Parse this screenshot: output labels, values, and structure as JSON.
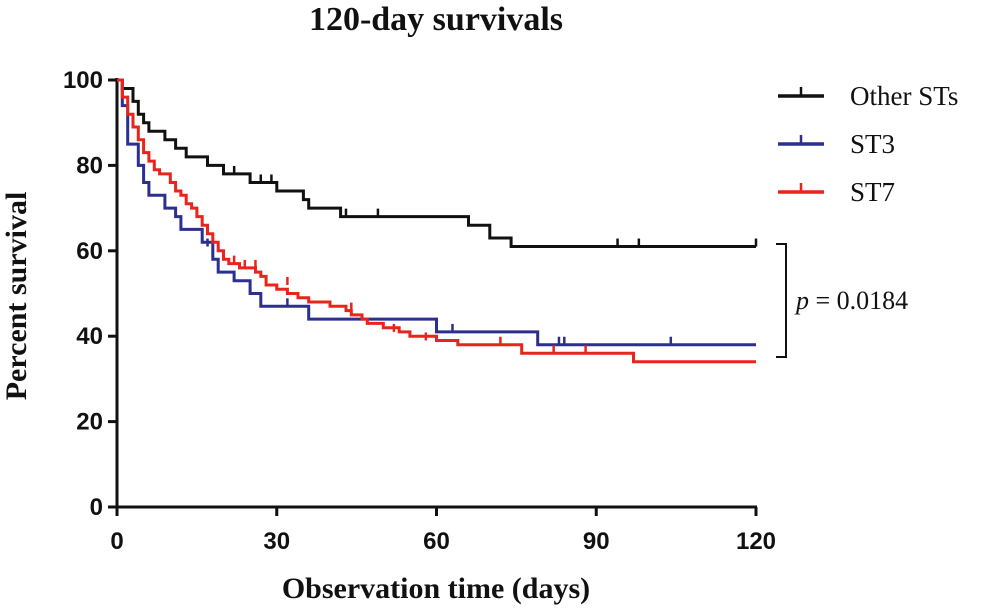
{
  "chart_data": {
    "type": "line",
    "subtype": "kaplan-meier step",
    "title": "120-day survivals",
    "xlabel": "Observation time (days)",
    "ylabel": "Percent survival",
    "xlim": [
      0,
      120
    ],
    "ylim": [
      0,
      100
    ],
    "xticks": [
      0,
      30,
      60,
      90,
      120
    ],
    "yticks": [
      0,
      20,
      40,
      60,
      80,
      100
    ],
    "legend_position": "top-right",
    "annotation": {
      "p_symbol": "p",
      "p_text": " = 0.0184",
      "spans_series": [
        "Other STs",
        "ST3"
      ]
    },
    "series": [
      {
        "name": "Other STs",
        "color": "#111111",
        "steps": [
          [
            0,
            100
          ],
          [
            1,
            98
          ],
          [
            3,
            95
          ],
          [
            4,
            92
          ],
          [
            5,
            90
          ],
          [
            6,
            88
          ],
          [
            9,
            86
          ],
          [
            11,
            84
          ],
          [
            13,
            82
          ],
          [
            17,
            80
          ],
          [
            20,
            78
          ],
          [
            25,
            76
          ],
          [
            30,
            74
          ],
          [
            35,
            72
          ],
          [
            36,
            70
          ],
          [
            42,
            68
          ],
          [
            66,
            66
          ],
          [
            70,
            63
          ],
          [
            74,
            61
          ],
          [
            120,
            61
          ]
        ],
        "censored": [
          [
            22,
            78
          ],
          [
            27,
            76
          ],
          [
            29,
            76
          ],
          [
            43,
            68
          ],
          [
            49,
            68
          ],
          [
            94,
            61
          ],
          [
            98,
            61
          ],
          [
            120,
            61
          ]
        ]
      },
      {
        "name": "ST3",
        "color": "#2b2f8f",
        "steps": [
          [
            0,
            100
          ],
          [
            1,
            94
          ],
          [
            2,
            85
          ],
          [
            4,
            80
          ],
          [
            5,
            76
          ],
          [
            6,
            73
          ],
          [
            9,
            70
          ],
          [
            11,
            68
          ],
          [
            12,
            65
          ],
          [
            16,
            62
          ],
          [
            18,
            58
          ],
          [
            19,
            55
          ],
          [
            22,
            53
          ],
          [
            25,
            50
          ],
          [
            27,
            47
          ],
          [
            36,
            44
          ],
          [
            46,
            44
          ],
          [
            60,
            41
          ],
          [
            79,
            38
          ],
          [
            120,
            38
          ]
        ],
        "censored": [
          [
            17,
            61
          ],
          [
            32,
            47
          ],
          [
            63,
            41
          ],
          [
            83,
            38
          ],
          [
            84,
            38
          ],
          [
            104,
            38
          ]
        ]
      },
      {
        "name": "ST7",
        "color": "#e8241c",
        "steps": [
          [
            0,
            100
          ],
          [
            1,
            96
          ],
          [
            2,
            92
          ],
          [
            3,
            89
          ],
          [
            4,
            86
          ],
          [
            5,
            83
          ],
          [
            6,
            81
          ],
          [
            7,
            79
          ],
          [
            8,
            78
          ],
          [
            10,
            76
          ],
          [
            11,
            74
          ],
          [
            12,
            73
          ],
          [
            13,
            71
          ],
          [
            14,
            70
          ],
          [
            15,
            68
          ],
          [
            16,
            66
          ],
          [
            17,
            64
          ],
          [
            18,
            62
          ],
          [
            19,
            60
          ],
          [
            20,
            58
          ],
          [
            21,
            57
          ],
          [
            23,
            56
          ],
          [
            26,
            55
          ],
          [
            27,
            54
          ],
          [
            28,
            52
          ],
          [
            30,
            51
          ],
          [
            32,
            50
          ],
          [
            34,
            49
          ],
          [
            36,
            48
          ],
          [
            40,
            47
          ],
          [
            43,
            46
          ],
          [
            44,
            45
          ],
          [
            46,
            44
          ],
          [
            47,
            43
          ],
          [
            50,
            42
          ],
          [
            53,
            41
          ],
          [
            55,
            40
          ],
          [
            60,
            39
          ],
          [
            64,
            38
          ],
          [
            70,
            38
          ],
          [
            76,
            36
          ],
          [
            97,
            34
          ],
          [
            120,
            34
          ]
        ],
        "censored": [
          [
            22,
            57
          ],
          [
            24,
            56
          ],
          [
            26,
            56
          ],
          [
            32,
            52
          ],
          [
            44,
            46
          ],
          [
            52,
            41
          ],
          [
            58,
            39
          ],
          [
            72,
            38
          ],
          [
            82,
            36
          ],
          [
            88,
            36
          ]
        ]
      }
    ]
  }
}
